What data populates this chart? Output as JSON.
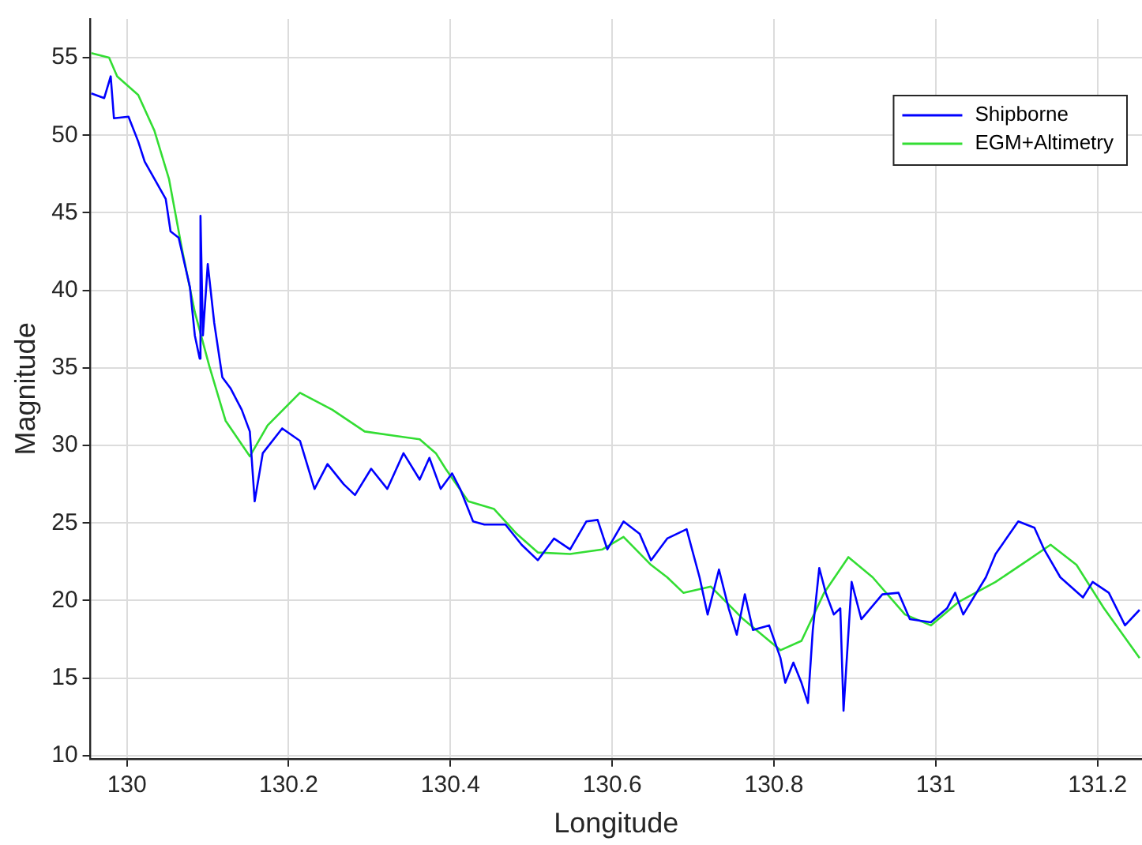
{
  "chart_data": {
    "type": "line",
    "xlabel": "Longitude",
    "ylabel": "Magnitude",
    "xlim": [
      129.955,
      131.255
    ],
    "ylim": [
      9.8,
      57.5
    ],
    "xticks": [
      130,
      130.2,
      130.4,
      130.6,
      130.8,
      131,
      131.2
    ],
    "yticks": [
      10,
      15,
      20,
      25,
      30,
      35,
      40,
      45,
      50,
      55
    ],
    "grid": true,
    "legend": "top right",
    "marker": "none",
    "line_style": "solid",
    "series": [
      {
        "name": "Shipborne",
        "color": "#0000ff",
        "x": [
          129.956,
          129.972,
          129.98,
          129.984,
          130.002,
          130.014,
          130.022,
          130.034,
          130.048,
          130.054,
          130.064,
          130.078,
          130.084,
          130.09,
          130.091,
          130.094,
          130.1,
          130.108,
          130.118,
          130.128,
          130.142,
          130.152,
          130.158,
          130.168,
          130.192,
          130.214,
          130.232,
          130.248,
          130.268,
          130.282,
          130.302,
          130.322,
          130.342,
          130.362,
          130.374,
          130.388,
          130.402,
          130.412,
          130.428,
          130.442,
          130.468,
          130.488,
          130.508,
          130.528,
          130.548,
          130.568,
          130.582,
          130.594,
          130.614,
          130.634,
          130.648,
          130.668,
          130.692,
          130.708,
          130.718,
          130.732,
          130.744,
          130.754,
          130.764,
          130.774,
          130.794,
          130.808,
          130.814,
          130.824,
          130.834,
          130.842,
          130.848,
          130.856,
          130.864,
          130.874,
          130.882,
          130.886,
          130.896,
          130.908,
          130.934,
          130.954,
          130.968,
          130.994,
          131.014,
          131.024,
          131.034,
          131.062,
          131.074,
          131.102,
          131.122,
          131.134,
          131.154,
          131.182,
          131.194,
          131.214,
          131.234,
          131.252
        ],
        "values": [
          52.7,
          52.4,
          53.8,
          51.1,
          51.2,
          49.6,
          48.3,
          47.2,
          45.9,
          43.8,
          43.4,
          40.2,
          37.1,
          35.6,
          44.8,
          37.1,
          41.7,
          37.9,
          34.4,
          33.7,
          32.3,
          30.9,
          26.4,
          29.5,
          31.1,
          30.3,
          27.2,
          28.8,
          27.5,
          26.8,
          28.5,
          27.2,
          29.5,
          27.8,
          29.2,
          27.2,
          28.2,
          27.2,
          25.1,
          24.9,
          24.9,
          23.6,
          22.6,
          24.0,
          23.3,
          25.1,
          25.2,
          23.3,
          25.1,
          24.3,
          22.6,
          24.0,
          24.6,
          21.5,
          19.1,
          22.0,
          19.5,
          17.8,
          20.4,
          18.1,
          18.4,
          16.3,
          14.7,
          16.0,
          14.7,
          13.4,
          18.1,
          22.1,
          20.5,
          19.1,
          19.5,
          12.9,
          21.2,
          18.8,
          20.4,
          20.5,
          18.8,
          18.6,
          19.5,
          20.5,
          19.1,
          21.5,
          23.0,
          25.1,
          24.7,
          23.3,
          21.5,
          20.2,
          21.2,
          20.5,
          18.4,
          19.4
        ]
      },
      {
        "name": "EGM+Altimetry",
        "color": "#33dd33",
        "x": [
          129.956,
          129.978,
          129.988,
          130.014,
          130.034,
          130.052,
          130.068,
          130.084,
          130.102,
          130.122,
          130.152,
          130.174,
          130.214,
          130.254,
          130.294,
          130.334,
          130.362,
          130.382,
          130.394,
          130.422,
          130.454,
          130.482,
          130.508,
          130.548,
          130.588,
          130.614,
          130.648,
          130.668,
          130.688,
          130.722,
          130.762,
          130.808,
          130.834,
          130.862,
          130.892,
          130.922,
          130.962,
          130.994,
          131.028,
          131.074,
          131.114,
          131.142,
          131.174,
          131.208,
          131.252
        ],
        "values": [
          55.3,
          55.0,
          53.8,
          52.6,
          50.3,
          47.2,
          42.7,
          38.6,
          35.1,
          31.6,
          29.3,
          31.3,
          33.4,
          32.3,
          30.9,
          30.6,
          30.4,
          29.5,
          28.5,
          26.4,
          25.9,
          24.3,
          23.1,
          23.0,
          23.3,
          24.1,
          22.3,
          21.5,
          20.5,
          20.9,
          18.8,
          16.8,
          17.4,
          20.5,
          22.8,
          21.5,
          19.1,
          18.4,
          19.9,
          21.2,
          22.6,
          23.6,
          22.3,
          19.5,
          16.3
        ]
      }
    ]
  }
}
